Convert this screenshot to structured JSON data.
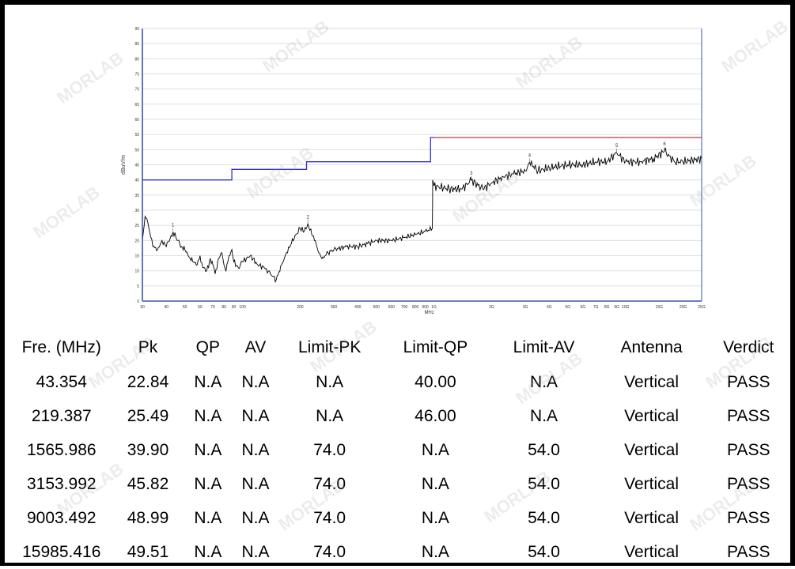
{
  "colors": {
    "frame": "#000000",
    "axis": "#3a56a8",
    "grid": "#d9d9d9",
    "limit_low": "#3232c8",
    "limit_high": "#b04040",
    "trace": "#000000",
    "watermark": "#9a9a9a"
  },
  "watermark_text": "MORLAB",
  "chart_data": {
    "type": "line",
    "title": "",
    "xlabel": "MHz",
    "ylabel": "dBuV/m",
    "x_scale": "log",
    "xlim": [
      30,
      25000
    ],
    "ylim": [
      0,
      90
    ],
    "grid": true,
    "y_ticks": [
      0,
      5,
      10,
      15,
      20,
      25,
      30,
      35,
      40,
      45,
      50,
      55,
      60,
      65,
      70,
      75,
      80,
      85,
      90
    ],
    "x_ticks": [
      {
        "v": 30,
        "label": "30"
      },
      {
        "v": 40,
        "label": "40"
      },
      {
        "v": 50,
        "label": "50"
      },
      {
        "v": 60,
        "label": "60"
      },
      {
        "v": 70,
        "label": "70"
      },
      {
        "v": 80,
        "label": "80"
      },
      {
        "v": 90,
        "label": "90"
      },
      {
        "v": 100,
        "label": "100"
      },
      {
        "v": 200,
        "label": "200"
      },
      {
        "v": 300,
        "label": "300"
      },
      {
        "v": 400,
        "label": "400"
      },
      {
        "v": 500,
        "label": "500"
      },
      {
        "v": 600,
        "label": "600"
      },
      {
        "v": 700,
        "label": "700"
      },
      {
        "v": 800,
        "label": "800"
      },
      {
        "v": 900,
        "label": "900"
      },
      {
        "v": 1000,
        "label": "1G"
      },
      {
        "v": 2000,
        "label": "2G"
      },
      {
        "v": 3000,
        "label": "3G"
      },
      {
        "v": 4000,
        "label": "4G"
      },
      {
        "v": 5000,
        "label": "5G"
      },
      {
        "v": 6000,
        "label": "6G"
      },
      {
        "v": 7000,
        "label": "7G"
      },
      {
        "v": 8000,
        "label": "8G"
      },
      {
        "v": 9000,
        "label": "9G"
      },
      {
        "v": 10000,
        "label": "10G"
      },
      {
        "v": 15000,
        "label": "15G"
      },
      {
        "v": 20000,
        "label": "20G"
      },
      {
        "v": 25000,
        "label": "25G"
      }
    ],
    "limit_line_below_1G": [
      [
        30,
        40
      ],
      [
        88,
        40
      ],
      [
        88,
        43.5
      ],
      [
        216,
        43.5
      ],
      [
        216,
        46
      ],
      [
        960,
        46
      ],
      [
        960,
        54
      ],
      [
        1000,
        54
      ]
    ],
    "limit_line_above_1G": [
      [
        1000,
        54
      ],
      [
        25000,
        54
      ]
    ],
    "measurement_trace": [
      [
        30,
        20
      ],
      [
        31,
        28
      ],
      [
        32,
        26
      ],
      [
        34,
        18
      ],
      [
        36,
        17
      ],
      [
        38,
        20
      ],
      [
        40,
        18
      ],
      [
        42,
        21
      ],
      [
        43.354,
        22.84
      ],
      [
        46,
        20
      ],
      [
        48,
        18
      ],
      [
        50,
        17
      ],
      [
        52,
        15
      ],
      [
        55,
        13
      ],
      [
        58,
        12
      ],
      [
        60,
        15
      ],
      [
        62,
        11
      ],
      [
        65,
        10
      ],
      [
        68,
        14
      ],
      [
        70,
        12
      ],
      [
        72,
        9
      ],
      [
        75,
        14
      ],
      [
        78,
        16
      ],
      [
        80,
        12
      ],
      [
        82,
        10
      ],
      [
        85,
        15
      ],
      [
        88,
        17
      ],
      [
        90,
        13
      ],
      [
        95,
        11
      ],
      [
        100,
        13
      ],
      [
        110,
        15
      ],
      [
        120,
        12
      ],
      [
        130,
        11
      ],
      [
        140,
        9
      ],
      [
        150,
        7
      ],
      [
        160,
        12
      ],
      [
        170,
        16
      ],
      [
        180,
        19
      ],
      [
        190,
        22
      ],
      [
        200,
        24
      ],
      [
        210,
        23
      ],
      [
        219.387,
        25.49
      ],
      [
        230,
        22
      ],
      [
        240,
        20
      ],
      [
        250,
        16
      ],
      [
        260,
        14
      ],
      [
        280,
        16
      ],
      [
        300,
        17
      ],
      [
        350,
        18
      ],
      [
        400,
        18
      ],
      [
        450,
        19
      ],
      [
        500,
        20
      ],
      [
        600,
        20
      ],
      [
        700,
        21
      ],
      [
        800,
        22
      ],
      [
        900,
        23
      ],
      [
        980,
        24
      ],
      [
        985,
        40
      ],
      [
        1000,
        38
      ],
      [
        1200,
        37
      ],
      [
        1400,
        37
      ],
      [
        1565.986,
        39.9
      ],
      [
        1800,
        37
      ],
      [
        2000,
        39
      ],
      [
        2300,
        41
      ],
      [
        2600,
        42
      ],
      [
        3000,
        43
      ],
      [
        3153.992,
        45.82
      ],
      [
        3500,
        43
      ],
      [
        4000,
        44
      ],
      [
        5000,
        45
      ],
      [
        6000,
        45
      ],
      [
        7000,
        46
      ],
      [
        8000,
        46
      ],
      [
        9003.492,
        48.99
      ],
      [
        10000,
        46
      ],
      [
        12000,
        46
      ],
      [
        14000,
        47
      ],
      [
        15985.416,
        49.51
      ],
      [
        18000,
        46
      ],
      [
        20000,
        46
      ],
      [
        25000,
        47
      ]
    ],
    "peak_markers": [
      {
        "label": "1",
        "x": 43.354,
        "y": 22.84
      },
      {
        "label": "2",
        "x": 219.387,
        "y": 25.49
      },
      {
        "label": "3",
        "x": 1565.986,
        "y": 39.9
      },
      {
        "label": "4",
        "x": 3153.992,
        "y": 45.82
      },
      {
        "label": "5",
        "x": 9003.492,
        "y": 48.99
      },
      {
        "label": "6",
        "x": 15985.416,
        "y": 49.51
      }
    ]
  },
  "table": {
    "headers": [
      "Fre. (MHz)",
      "Pk",
      "QP",
      "AV",
      "Limit-PK",
      "Limit-QP",
      "Limit-AV",
      "Antenna",
      "Verdict"
    ],
    "rows": [
      [
        "43.354",
        "22.84",
        "N.A",
        "N.A",
        "N.A",
        "40.00",
        "N.A",
        "Vertical",
        "PASS"
      ],
      [
        "219.387",
        "25.49",
        "N.A",
        "N.A",
        "N.A",
        "46.00",
        "N.A",
        "Vertical",
        "PASS"
      ],
      [
        "1565.986",
        "39.90",
        "N.A",
        "N.A",
        "74.0",
        "N.A",
        "54.0",
        "Vertical",
        "PASS"
      ],
      [
        "3153.992",
        "45.82",
        "N.A",
        "N.A",
        "74.0",
        "N.A",
        "54.0",
        "Vertical",
        "PASS"
      ],
      [
        "9003.492",
        "48.99",
        "N.A",
        "N.A",
        "74.0",
        "N.A",
        "54.0",
        "Vertical",
        "PASS"
      ],
      [
        "15985.416",
        "49.51",
        "N.A",
        "N.A",
        "74.0",
        "N.A",
        "54.0",
        "Vertical",
        "PASS"
      ]
    ]
  }
}
